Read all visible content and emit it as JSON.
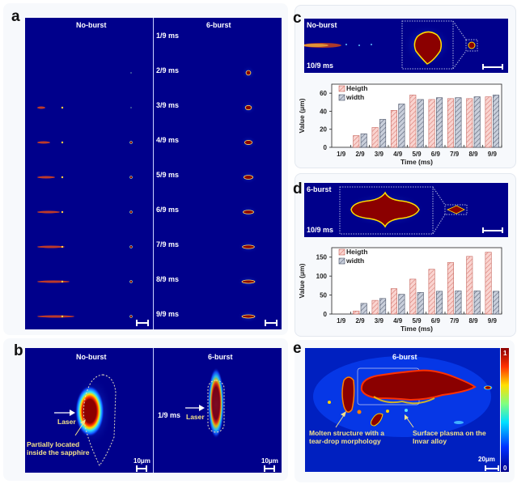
{
  "panel_labels": {
    "a": "a",
    "b": "b",
    "c": "c",
    "d": "d",
    "e": "e"
  },
  "panel_a": {
    "left_title": "No-burst",
    "right_title": "6-burst",
    "times": [
      "1/9 ms",
      "2/9 ms",
      "3/9 ms",
      "4/9 ms",
      "5/9 ms",
      "6/9 ms",
      "7/9 ms",
      "8/9 ms",
      "9/9 ms"
    ]
  },
  "panel_b": {
    "left_title": "No-burst",
    "right_title": "6-burst",
    "time": "1/9 ms",
    "laser_left": "Laser",
    "laser_right": "Laser",
    "annotation_line1": "Partially located",
    "annotation_line2": "inside the sapphire",
    "scale_left": "10μm",
    "scale_right": "10μm"
  },
  "panel_c": {
    "title": "No-burst",
    "time": "10/9 ms"
  },
  "panel_d": {
    "title": "6-burst",
    "time": "10/9 ms"
  },
  "panel_e": {
    "title": "6-burst",
    "annotation_left_line1": "Molten structure with a",
    "annotation_left_line2": "tear-drop morphology",
    "annotation_right_line1": "Surface plasma on the",
    "annotation_right_line2": "Invar alloy",
    "scale": "20μm",
    "colorbar_max": "1",
    "colorbar_min": "0"
  },
  "chart_data": [
    {
      "type": "bar",
      "panel": "c",
      "categories": [
        "1/9",
        "2/9",
        "3/9",
        "4/9",
        "5/9",
        "6/9",
        "7/9",
        "8/9",
        "9/9"
      ],
      "series": [
        {
          "name": "Heigth",
          "values": [
            0,
            13,
            22,
            41,
            58,
            53,
            54,
            54,
            56
          ],
          "color": "#f4b6b0"
        },
        {
          "name": "width",
          "values": [
            0,
            15,
            31,
            48,
            53,
            55,
            55,
            56,
            58
          ],
          "color": "#a7b0c4"
        }
      ],
      "title": "",
      "xlabel": "Time (ms)",
      "ylabel": "Value (μm)",
      "ylim": [
        0,
        70
      ],
      "yticks": [
        0,
        20,
        40,
        60
      ],
      "legend": "top-left"
    },
    {
      "type": "bar",
      "panel": "d",
      "categories": [
        "1/9",
        "2/9",
        "3/9",
        "4/9",
        "5/9",
        "6/9",
        "7/9",
        "8/9",
        "9/9"
      ],
      "series": [
        {
          "name": "Heigth",
          "values": [
            0,
            8,
            36,
            67,
            92,
            118,
            136,
            152,
            163
          ],
          "color": "#f4b6b0"
        },
        {
          "name": "width",
          "values": [
            0,
            28,
            41,
            52,
            57,
            60,
            61,
            61,
            60
          ],
          "color": "#a7b0c4"
        }
      ],
      "title": "",
      "xlabel": "Time (ms)",
      "ylabel": "Value (μm)",
      "ylim": [
        0,
        175
      ],
      "yticks": [
        0,
        50,
        100,
        150
      ],
      "legend": "top-left"
    }
  ]
}
